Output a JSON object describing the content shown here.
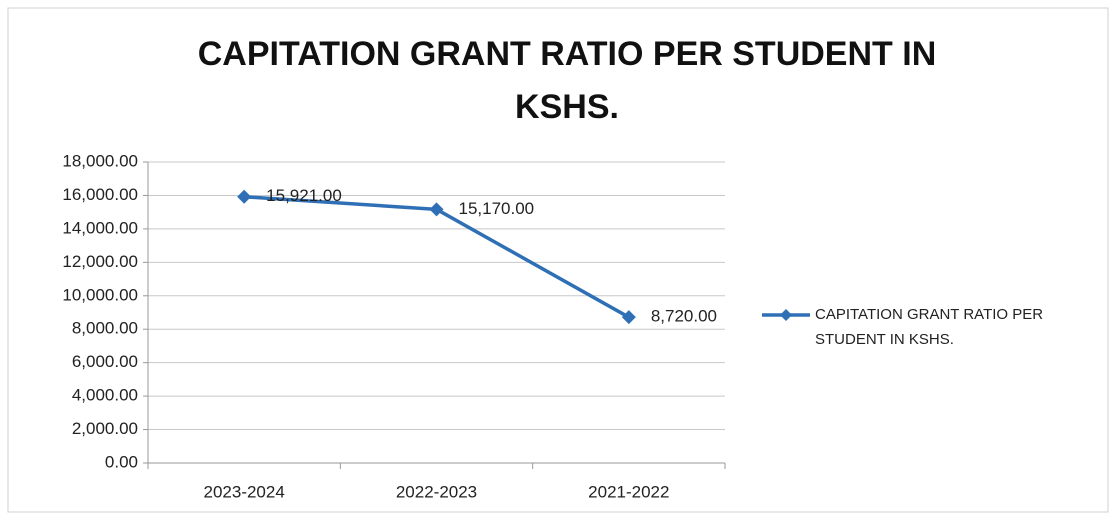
{
  "chart_data": {
    "type": "line",
    "title": "CAPITATION GRANT RATIO PER STUDENT IN KSHS.",
    "categories": [
      "2023-2024",
      "2022-2023",
      "2021-2022"
    ],
    "series": [
      {
        "name": "CAPITATION GRANT RATIO PER STUDENT IN KSHS.",
        "color": "#2f6fb5",
        "values": [
          15921,
          15170,
          8720
        ],
        "value_labels": [
          "15,921.00",
          "15,170.00",
          "8,720.00"
        ]
      }
    ],
    "ylim": [
      0,
      18000
    ],
    "yticks": [
      {
        "value": 0,
        "label": "0.00"
      },
      {
        "value": 2000,
        "label": "2,000.00"
      },
      {
        "value": 4000,
        "label": "4,000.00"
      },
      {
        "value": 6000,
        "label": "6,000.00"
      },
      {
        "value": 8000,
        "label": "8,000.00"
      },
      {
        "value": 10000,
        "label": "10,000.00"
      },
      {
        "value": 12000,
        "label": "12,000.00"
      },
      {
        "value": 14000,
        "label": "14,000.00"
      },
      {
        "value": 16000,
        "label": "16,000.00"
      },
      {
        "value": 18000,
        "label": "18,000.00"
      }
    ],
    "grid": true,
    "legend": "right"
  }
}
